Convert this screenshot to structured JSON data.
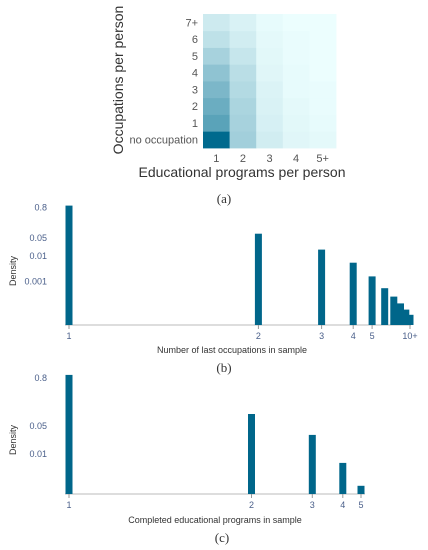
{
  "chart_data": [
    {
      "type": "heatmap",
      "panel_label": "(a)",
      "xlabel": "Educational programs per person",
      "ylabel": "Occupations per person",
      "x_categories": [
        "1",
        "2",
        "3",
        "4",
        "5+"
      ],
      "y_categories": [
        "no occupation",
        "1",
        "2",
        "3",
        "4",
        "5",
        "6",
        "7+"
      ],
      "values": [
        [
          1.0,
          0.32,
          0.12,
          0.06,
          0.04
        ],
        [
          0.62,
          0.3,
          0.1,
          0.05,
          0.03
        ],
        [
          0.55,
          0.28,
          0.09,
          0.04,
          0.02
        ],
        [
          0.48,
          0.25,
          0.08,
          0.03,
          0.02
        ],
        [
          0.4,
          0.22,
          0.06,
          0.03,
          0.01
        ],
        [
          0.3,
          0.17,
          0.05,
          0.02,
          0.01
        ],
        [
          0.2,
          0.12,
          0.04,
          0.02,
          0.01
        ],
        [
          0.14,
          0.09,
          0.03,
          0.01,
          0.01
        ]
      ],
      "color_low": "#eeffff",
      "color_high": "#006a8e"
    },
    {
      "type": "bar",
      "panel_label": "(b)",
      "xlabel": "Number of last occupations in sample",
      "ylabel": "Density",
      "x_scale": "reciprocal",
      "x": [
        1,
        2,
        3,
        4,
        5,
        6,
        7,
        8,
        9,
        10
      ],
      "values": [
        0.95,
        0.075,
        0.018,
        0.0055,
        0.0016,
        0.00055,
        0.00026,
        0.00014,
        8e-05,
        5e-05
      ],
      "x_tick_labels": [
        {
          "x": 1,
          "label": "1"
        },
        {
          "x": 2,
          "label": "2"
        },
        {
          "x": 3,
          "label": "3"
        },
        {
          "x": 4,
          "label": "4"
        },
        {
          "x": 5,
          "label": "5"
        },
        {
          "x": 10,
          "label": "10+"
        }
      ],
      "y_tick_labels": [
        {
          "y": 0.8,
          "label": "0.8"
        },
        {
          "y": 0.05,
          "label": "0.05"
        },
        {
          "y": 0.01,
          "label": "0.01"
        },
        {
          "y": 0.001,
          "label": "0.001"
        }
      ],
      "y_scale": "log",
      "ylim": [
        2e-05,
        1
      ],
      "bar_color": "#00668a"
    },
    {
      "type": "bar",
      "panel_label": "(c)",
      "xlabel": "Completed educational programs in sample",
      "ylabel": "Density",
      "x_scale": "reciprocal",
      "x": [
        1,
        2,
        3,
        4,
        5
      ],
      "values": [
        0.95,
        0.1,
        0.03,
        0.006,
        0.0016
      ],
      "x_tick_labels": [
        {
          "x": 1,
          "label": "1"
        },
        {
          "x": 2,
          "label": "2"
        },
        {
          "x": 3,
          "label": "3"
        },
        {
          "x": 4,
          "label": "4"
        },
        {
          "x": 5,
          "label": "5"
        }
      ],
      "y_tick_labels": [
        {
          "y": 0.8,
          "label": "0.8"
        },
        {
          "y": 0.05,
          "label": "0.05"
        },
        {
          "y": 0.01,
          "label": "0.01"
        }
      ],
      "y_scale": "log",
      "ylim": [
        0.001,
        1
      ],
      "bar_color": "#00668a"
    }
  ]
}
